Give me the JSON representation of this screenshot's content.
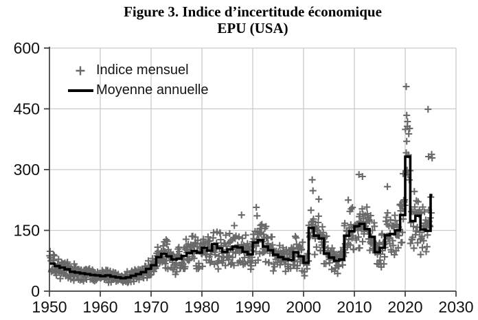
{
  "figure": {
    "title_line1": "Figure 3. Indice d’incertitude économique",
    "title_line2": "EPU (USA)"
  },
  "legend": {
    "monthly_label": "Indice mensuel",
    "annual_label": "Moyenne annuelle"
  },
  "colors": {
    "scatter": "#696969",
    "annual_line": "#000000",
    "grid": "#c9c9c9",
    "axis": "#3c3c3c",
    "text": "#111111"
  },
  "chart_data": {
    "type": "scatter",
    "title": "Figure 3. Indice d’incertitude économique — EPU (USA)",
    "xlabel": "",
    "ylabel": "",
    "x_axis": {
      "min": 1950,
      "max": 2030,
      "ticks": [
        1950,
        1960,
        1970,
        1980,
        1990,
        2000,
        2010,
        2020,
        2030
      ]
    },
    "y_axis": {
      "min": 0,
      "max": 600,
      "ticks": [
        0,
        150,
        300,
        450,
        600
      ]
    },
    "grid": true,
    "legend_position": "top-left-inside",
    "series": [
      {
        "name": "Indice mensuel",
        "type": "scatter",
        "marker": "plus",
        "color": "#696969",
        "description": "Monthly EPU index points scattered around each year's annual mean",
        "months_in_last_year": 4,
        "relative_spread": 0.5,
        "outlier_points": [
          {
            "x": 1987.8,
            "y": 188
          },
          {
            "x": 1990.7,
            "y": 207
          },
          {
            "x": 1990.85,
            "y": 186
          },
          {
            "x": 2001.7,
            "y": 275
          },
          {
            "x": 2001.85,
            "y": 248
          },
          {
            "x": 2003.0,
            "y": 227
          },
          {
            "x": 2008.8,
            "y": 225
          },
          {
            "x": 2010.9,
            "y": 288
          },
          {
            "x": 2011.6,
            "y": 283
          },
          {
            "x": 2016.5,
            "y": 258
          },
          {
            "x": 2019.6,
            "y": 290
          },
          {
            "x": 2020.2,
            "y": 505
          },
          {
            "x": 2020.3,
            "y": 434
          },
          {
            "x": 2020.4,
            "y": 407
          },
          {
            "x": 2024.5,
            "y": 449
          },
          {
            "x": 2024.6,
            "y": 332
          }
        ]
      },
      {
        "name": "Moyenne annuelle",
        "type": "step-line",
        "color": "#000000",
        "year_start": 1950,
        "values": [
          68,
          62,
          58,
          54,
          48,
          46,
          44,
          42,
          40,
          39,
          37,
          39,
          36,
          34,
          32,
          34,
          38,
          42,
          47,
          55,
          64,
          84,
          92,
          86,
          78,
          80,
          87,
          94,
          99,
          95,
          107,
          100,
          116,
          106,
          97,
          103,
          110,
          108,
          97,
          91,
          120,
          126,
          110,
          101,
          90,
          84,
          79,
          77,
          96,
          86,
          70,
          156,
          137,
          130,
          93,
          83,
          75,
          78,
          137,
          148,
          160,
          166,
          153,
          134,
          96,
          107,
          138,
          141,
          150,
          188,
          332,
          173,
          186,
          152,
          149,
          237
        ]
      }
    ]
  }
}
